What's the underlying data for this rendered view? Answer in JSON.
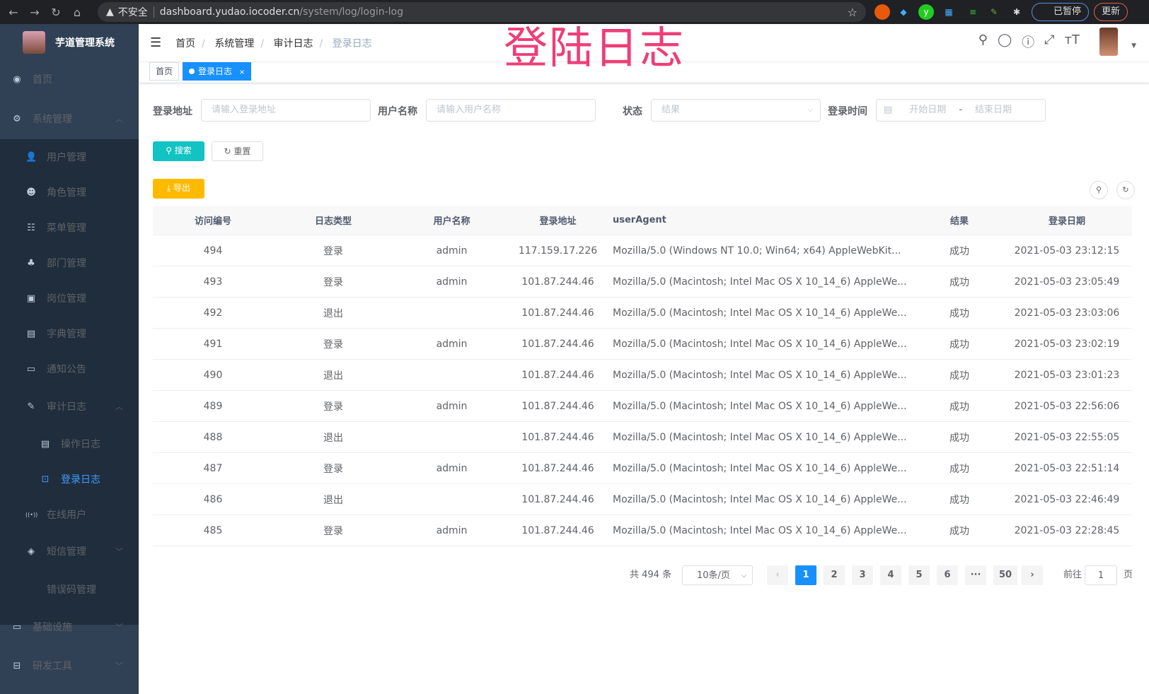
{
  "browser": {
    "security": "不安全",
    "url_host": "dashboard.yudao.iocoder.cn",
    "url_path": "/system/log/login-log",
    "profile": "已暂停",
    "update": "更新"
  },
  "overlay_title": "登陆日志",
  "sidebar": {
    "app_title": "芋道管理系统",
    "items": [
      {
        "label": "首页",
        "icon": "dashboard-icon"
      },
      {
        "label": "系统管理",
        "icon": "gear-icon"
      },
      {
        "label": "用户管理",
        "icon": "user-icon"
      },
      {
        "label": "角色管理",
        "icon": "peoples-icon"
      },
      {
        "label": "菜单管理",
        "icon": "tree-table-icon"
      },
      {
        "label": "部门管理",
        "icon": "tree-icon"
      },
      {
        "label": "岗位管理",
        "icon": "post-icon"
      },
      {
        "label": "字典管理",
        "icon": "dict-icon"
      },
      {
        "label": "通知公告",
        "icon": "message-icon"
      },
      {
        "label": "审计日志",
        "icon": "log-icon"
      },
      {
        "label": "操作日志",
        "icon": "form-icon"
      },
      {
        "label": "登录日志",
        "icon": "logininfor-icon"
      },
      {
        "label": "在线用户",
        "icon": "online-icon"
      },
      {
        "label": "短信管理",
        "icon": "validCode-icon"
      },
      {
        "label": "错误码管理",
        "icon": "code-icon"
      },
      {
        "label": "基础设施",
        "icon": "monitor-icon"
      },
      {
        "label": "研发工具",
        "icon": "tool-icon"
      }
    ]
  },
  "breadcrumb": [
    "首页",
    "系统管理",
    "审计日志",
    "登录日志"
  ],
  "tags": [
    {
      "label": "首页"
    },
    {
      "label": "登录日志",
      "close": "×"
    }
  ],
  "form": {
    "ip_label": "登录地址",
    "ip_placeholder": "请输入登录地址",
    "user_label": "用户名称",
    "user_placeholder": "请输入用户名称",
    "status_label": "状态",
    "status_placeholder": "结果",
    "time_label": "登录时间",
    "start_placeholder": "开始日期",
    "range_sep": "-",
    "end_placeholder": "结束日期",
    "search": "搜索",
    "reset": "重置",
    "export": "导出"
  },
  "colors": {
    "primary": "#1890ff",
    "search": "#13c2c2",
    "export": "#ffba00",
    "sidebar": "#304156",
    "overlay": "#ef3e76"
  },
  "table": {
    "headers": [
      "访问编号",
      "日志类型",
      "用户名称",
      "登录地址",
      "userAgent",
      "结果",
      "登录日期"
    ],
    "rows": [
      [
        "494",
        "登录",
        "admin",
        "117.159.17.226",
        "Mozilla/5.0 (Windows NT 10.0; Win64; x64) AppleWebKit...",
        "成功",
        "2021-05-03 23:12:15"
      ],
      [
        "493",
        "登录",
        "admin",
        "101.87.244.46",
        "Mozilla/5.0 (Macintosh; Intel Mac OS X 10_14_6) AppleWe...",
        "成功",
        "2021-05-03 23:05:49"
      ],
      [
        "492",
        "退出",
        "",
        "101.87.244.46",
        "Mozilla/5.0 (Macintosh; Intel Mac OS X 10_14_6) AppleWe...",
        "成功",
        "2021-05-03 23:03:06"
      ],
      [
        "491",
        "登录",
        "admin",
        "101.87.244.46",
        "Mozilla/5.0 (Macintosh; Intel Mac OS X 10_14_6) AppleWe...",
        "成功",
        "2021-05-03 23:02:19"
      ],
      [
        "490",
        "退出",
        "",
        "101.87.244.46",
        "Mozilla/5.0 (Macintosh; Intel Mac OS X 10_14_6) AppleWe...",
        "成功",
        "2021-05-03 23:01:23"
      ],
      [
        "489",
        "登录",
        "admin",
        "101.87.244.46",
        "Mozilla/5.0 (Macintosh; Intel Mac OS X 10_14_6) AppleWe...",
        "成功",
        "2021-05-03 22:56:06"
      ],
      [
        "488",
        "退出",
        "",
        "101.87.244.46",
        "Mozilla/5.0 (Macintosh; Intel Mac OS X 10_14_6) AppleWe...",
        "成功",
        "2021-05-03 22:55:05"
      ],
      [
        "487",
        "登录",
        "admin",
        "101.87.244.46",
        "Mozilla/5.0 (Macintosh; Intel Mac OS X 10_14_6) AppleWe...",
        "成功",
        "2021-05-03 22:51:14"
      ],
      [
        "486",
        "退出",
        "",
        "101.87.244.46",
        "Mozilla/5.0 (Macintosh; Intel Mac OS X 10_14_6) AppleWe...",
        "成功",
        "2021-05-03 22:46:49"
      ],
      [
        "485",
        "登录",
        "admin",
        "101.87.244.46",
        "Mozilla/5.0 (Macintosh; Intel Mac OS X 10_14_6) AppleWe...",
        "成功",
        "2021-05-03 22:28:45"
      ]
    ]
  },
  "pagination": {
    "total": "共 494 条",
    "page_size": "10条/页",
    "pages": [
      "1",
      "2",
      "3",
      "4",
      "5",
      "6",
      "···",
      "50"
    ],
    "current": "1",
    "goto_label": "前往",
    "goto_value": "1",
    "goto_suffix": "页"
  }
}
